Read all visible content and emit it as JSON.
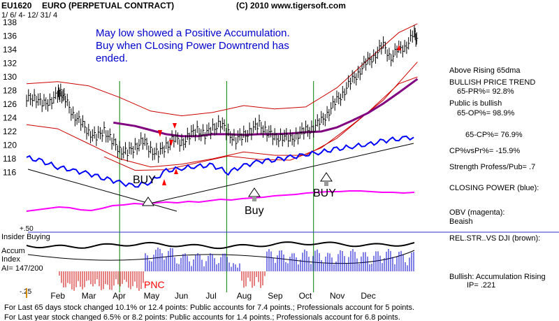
{
  "header": {
    "symbol": "EU1620",
    "name": "EURO  (PERPETUAL CONTRACT)",
    "copyright": "(C) 2010 www.tigersoft.com",
    "date_range": "1/ 6/ 4- 12/ 31/ 4"
  },
  "annotation": {
    "lines": [
      "May low showed a Positive Accumulation.",
      "Buy when CLosing Power Downtrend has",
      "ended."
    ]
  },
  "signals": {
    "buy1": "BUY",
    "buy2": "Buy",
    "buy3": "BUY",
    "pnc": "PNC"
  },
  "panel_labels": {
    "insider_buying": "Insider Buying",
    "accum_line1": "Accum",
    "accum_line2": "Index",
    "ai_value": "AI= 147/200",
    "level_top": "+.50",
    "level_bottom": "-.25"
  },
  "right_panel": {
    "above_65dma": "Above Rising 65dma",
    "bullish_trend": "BULLISH PRICE TREND",
    "pr_65": "65-PR%= 92.8%",
    "public_bullish": "Public is bullish",
    "op_65": "65-OP%= 98.9%",
    "cp_65": "65-CP%= 76.9%",
    "cp_vs_pr": "CP%vsPr%= -15.9%",
    "strength": "Strength Profess/Pub= .7",
    "closing_power": "CLOSING POWER (blue):",
    "obv_line1": "OBV (magenta):",
    "obv_line2": "Beaish",
    "relstr": "REL.STR..VS DJI (brown):",
    "bullish_accum": "Bullish: Accumulation Rising",
    "ip": "IP=  .221"
  },
  "footer": {
    "line1": "For Last 65 days stock changed  10.1% or  12.4 points:  Public accounts for  7.4 points.;  Professionals account for  5 points.",
    "line2": "For Last year stock changed  6.5% or  8.2 points:  Public accounts for  1.4 points.;  Professionals account for  6.8 points."
  },
  "chart_data": {
    "type": "line",
    "ylim": [
      114,
      138
    ],
    "yticks": [
      116,
      118,
      120,
      122,
      124,
      126,
      128,
      130,
      132,
      134,
      136,
      138
    ],
    "months": [
      "Feb",
      "Mar",
      "Apr",
      "May",
      "Jun",
      "Jul",
      "Aug",
      "Sep",
      "Oct",
      "Nov",
      "Dec"
    ],
    "signal_months": [
      3.0,
      6.45,
      9.25
    ],
    "colors": {
      "price": "#000000",
      "band": "#cc0000",
      "ma65": "#800080",
      "closing_power": "#0000ff",
      "obv": "#ff00ff",
      "signal_line": "#008000",
      "accum_up": "#0000cc",
      "accum_down": "#cc0000",
      "arrow_red": "#ff0000",
      "text_blue": "#0000cc"
    },
    "series": [
      {
        "name": "price",
        "points": [
          [
            0,
            126.5
          ],
          [
            0.25,
            127.3
          ],
          [
            0.5,
            125.8
          ],
          [
            0.75,
            126.6
          ],
          [
            1.0,
            127.2
          ],
          [
            1.1,
            128.0
          ],
          [
            1.25,
            126.5
          ],
          [
            1.5,
            124.6
          ],
          [
            1.75,
            123.2
          ],
          [
            2.0,
            122.0
          ],
          [
            2.25,
            121.0
          ],
          [
            2.5,
            122.3
          ],
          [
            2.75,
            120.5
          ],
          [
            3.0,
            119.4
          ],
          [
            3.25,
            118.8
          ],
          [
            3.5,
            119.8
          ],
          [
            3.75,
            120.6
          ],
          [
            4.0,
            119.3
          ],
          [
            4.25,
            118.7
          ],
          [
            4.5,
            119.9
          ],
          [
            4.75,
            121.0
          ],
          [
            5.0,
            120.3
          ],
          [
            5.25,
            121.4
          ],
          [
            5.5,
            122.2
          ],
          [
            5.75,
            121.5
          ],
          [
            6.0,
            122.5
          ],
          [
            6.25,
            123.2
          ],
          [
            6.5,
            121.7
          ],
          [
            6.75,
            120.8
          ],
          [
            7.0,
            121.4
          ],
          [
            7.25,
            122.2
          ],
          [
            7.5,
            123.0
          ],
          [
            7.75,
            122.0
          ],
          [
            8.0,
            121.0
          ],
          [
            8.25,
            121.3
          ],
          [
            8.5,
            120.8
          ],
          [
            8.75,
            121.6
          ],
          [
            9.0,
            122.1
          ],
          [
            9.25,
            122.6
          ],
          [
            9.5,
            123.5
          ],
          [
            9.75,
            125.0
          ],
          [
            10.0,
            126.5
          ],
          [
            10.25,
            128.0
          ],
          [
            10.5,
            129.5
          ],
          [
            10.75,
            131.0
          ],
          [
            11.0,
            132.2
          ],
          [
            11.25,
            133.4
          ],
          [
            11.5,
            134.5
          ],
          [
            11.75,
            133.0
          ],
          [
            12.0,
            133.9
          ],
          [
            12.25,
            134.8
          ],
          [
            12.5,
            136.2
          ],
          [
            12.6,
            135.6
          ]
        ]
      },
      {
        "name": "upper-band",
        "points": [
          [
            0,
            129.0
          ],
          [
            1,
            129.3
          ],
          [
            2,
            128.7
          ],
          [
            3,
            127.0
          ],
          [
            4,
            125.0
          ],
          [
            5,
            124.3
          ],
          [
            6,
            124.8
          ],
          [
            7,
            125.8
          ],
          [
            8,
            125.3
          ],
          [
            9,
            125.6
          ],
          [
            10,
            128.4
          ],
          [
            11,
            132.5
          ],
          [
            12,
            136.5
          ],
          [
            12.6,
            137.8
          ]
        ]
      },
      {
        "name": "lower-band",
        "points": [
          [
            0,
            123.0
          ],
          [
            1,
            122.4
          ],
          [
            2,
            120.2
          ],
          [
            3,
            118.0
          ],
          [
            4,
            116.8
          ],
          [
            5,
            117.2
          ],
          [
            6,
            118.0
          ],
          [
            7,
            119.0
          ],
          [
            8,
            118.5
          ],
          [
            9,
            118.5
          ],
          [
            10,
            121.0
          ],
          [
            11,
            124.8
          ],
          [
            12,
            129.0
          ],
          [
            12.6,
            130.0
          ]
        ]
      },
      {
        "name": "lower-envelope",
        "points": [
          [
            2.5,
            118.3
          ],
          [
            3.5,
            116.3
          ],
          [
            4.5,
            116.4
          ],
          [
            5.5,
            117.4
          ],
          [
            6.5,
            118.4
          ],
          [
            7.5,
            117.9
          ],
          [
            8.5,
            117.8
          ],
          [
            9.5,
            119.6
          ],
          [
            10.5,
            123.0
          ],
          [
            11.5,
            126.6
          ],
          [
            12.6,
            132.2
          ]
        ]
      },
      {
        "name": "ma65",
        "points": [
          [
            2.8,
            123.3
          ],
          [
            3.5,
            122.8
          ],
          [
            4,
            122.2
          ],
          [
            4.5,
            121.6
          ],
          [
            5,
            121.3
          ],
          [
            5.5,
            121.3
          ],
          [
            6,
            121.6
          ],
          [
            6.5,
            121.6
          ],
          [
            7,
            121.5
          ],
          [
            7.5,
            121.6
          ],
          [
            8,
            121.6
          ],
          [
            8.5,
            121.7
          ],
          [
            9,
            121.9
          ],
          [
            9.5,
            122.0
          ],
          [
            10,
            122.6
          ],
          [
            10.5,
            123.6
          ],
          [
            11,
            124.7
          ],
          [
            11.5,
            126.1
          ],
          [
            12,
            127.7
          ],
          [
            12.6,
            129.7
          ]
        ]
      }
    ],
    "closing_power": [
      [
        0,
        118.2
      ],
      [
        0.5,
        117.6
      ],
      [
        1,
        116.8
      ],
      [
        1.5,
        116.3
      ],
      [
        2,
        115.8
      ],
      [
        2.5,
        115.2
      ],
      [
        3,
        114.5
      ],
      [
        3.5,
        114.0
      ],
      [
        4,
        114.6
      ],
      [
        4.5,
        116.2
      ],
      [
        5,
        116.6
      ],
      [
        5.5,
        116.9
      ],
      [
        6,
        117.0
      ],
      [
        6.5,
        116.0
      ],
      [
        7,
        117.0
      ],
      [
        7.5,
        117.6
      ],
      [
        8,
        117.9
      ],
      [
        8.5,
        118.2
      ],
      [
        9,
        118.6
      ],
      [
        9.5,
        119.0
      ],
      [
        10,
        119.4
      ],
      [
        10.5,
        119.8
      ],
      [
        11,
        120.1
      ],
      [
        11.5,
        120.6
      ],
      [
        12,
        121.0
      ],
      [
        12.6,
        121.2
      ]
    ]
  }
}
